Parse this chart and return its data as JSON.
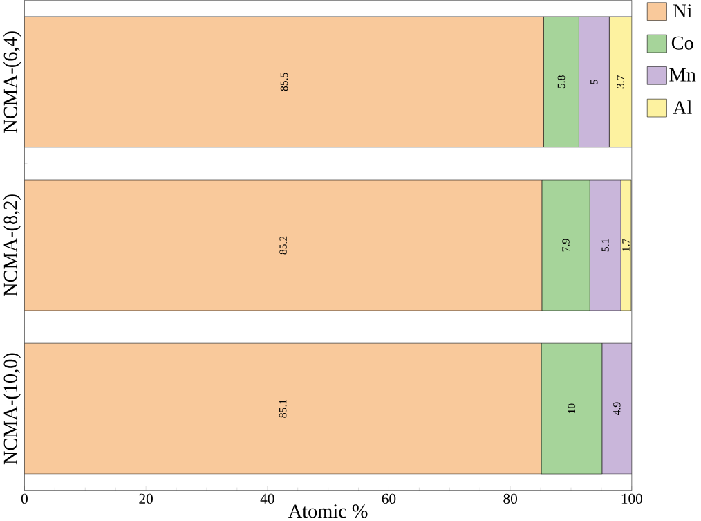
{
  "chart_data": {
    "type": "bar",
    "orientation": "horizontal",
    "stacked": true,
    "xlabel": "Atomic %",
    "categories": [
      "NCMA-(6,4)",
      "NCMA-(8,2)",
      "NCMA-(10,0)"
    ],
    "series": [
      {
        "name": "Ni",
        "color": "#f9c99b",
        "values": [
          85.5,
          85.2,
          85.1
        ],
        "value_labels": [
          "85.5",
          "85.2",
          "85.1"
        ]
      },
      {
        "name": "Co",
        "color": "#a6d49a",
        "values": [
          5.8,
          7.9,
          10
        ],
        "value_labels": [
          "5.8",
          "7.9",
          "10"
        ]
      },
      {
        "name": "Mn",
        "color": "#c9b6da",
        "values": [
          5,
          5.1,
          4.9
        ],
        "value_labels": [
          "5",
          "5.1",
          "4.9"
        ]
      },
      {
        "name": "Al",
        "color": "#fdf2a0",
        "values": [
          3.7,
          1.7,
          null
        ],
        "value_labels": [
          "3.7",
          "1.7",
          null
        ]
      }
    ],
    "xlim": [
      0,
      100
    ],
    "xticks": [
      0,
      20,
      40,
      60,
      80,
      100
    ],
    "legend": "right"
  }
}
